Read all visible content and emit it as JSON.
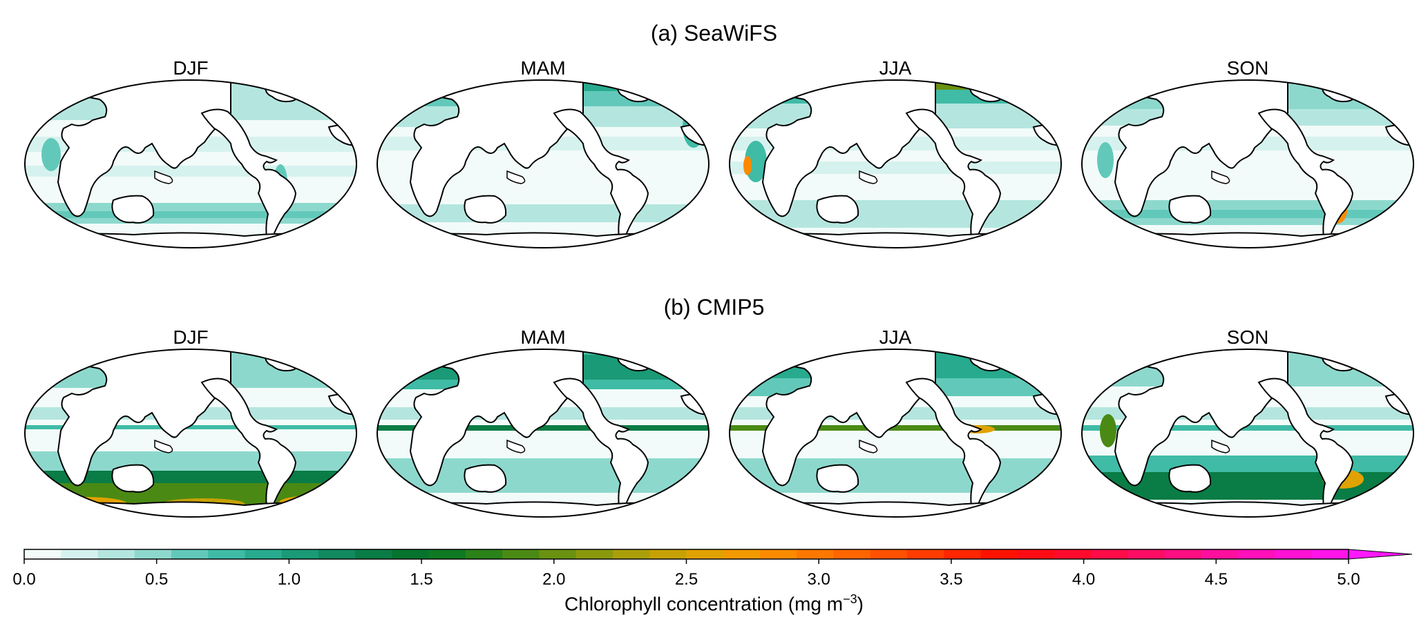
{
  "rows": [
    {
      "title": "(a) SeaWiFS",
      "panels": [
        "DJF",
        "MAM",
        "JJA",
        "SON"
      ]
    },
    {
      "title": "(b) CMIP5",
      "panels": [
        "DJF",
        "MAM",
        "JJA",
        "SON"
      ]
    }
  ],
  "colorbar": {
    "label_main": "Chlorophyll concentration (mg m",
    "label_sup": "−3",
    "label_end": ")",
    "min": 0.0,
    "max": 5.0,
    "extend": "max",
    "ticks": [
      "0.0",
      "0.5",
      "1.0",
      "1.5",
      "2.0",
      "2.5",
      "3.0",
      "3.5",
      "4.0",
      "4.5",
      "5.0"
    ],
    "colors": [
      "#f2fbf9",
      "#d6f2ee",
      "#b4e6df",
      "#8dd8cd",
      "#62c9ba",
      "#3fbba6",
      "#27aa8e",
      "#1a9a76",
      "#118a5f",
      "#0a7c45",
      "#06742e",
      "#0f7a22",
      "#2a8219",
      "#4a8a14",
      "#6a9210",
      "#8a990c",
      "#aa9f09",
      "#c7a205",
      "#e0a202",
      "#f39a00",
      "#fb8a00",
      "#fe7800",
      "#ff6500",
      "#ff5100",
      "#ff3c00",
      "#ff2600",
      "#ff1200",
      "#ff0b14",
      "#ff0a2d",
      "#ff0b48",
      "#ff0d64",
      "#ff0e80",
      "#ff0f9d",
      "#ff10ba",
      "#ff12d4",
      "#ff14e9"
    ],
    "extend_color": "#ff19ff"
  }
}
